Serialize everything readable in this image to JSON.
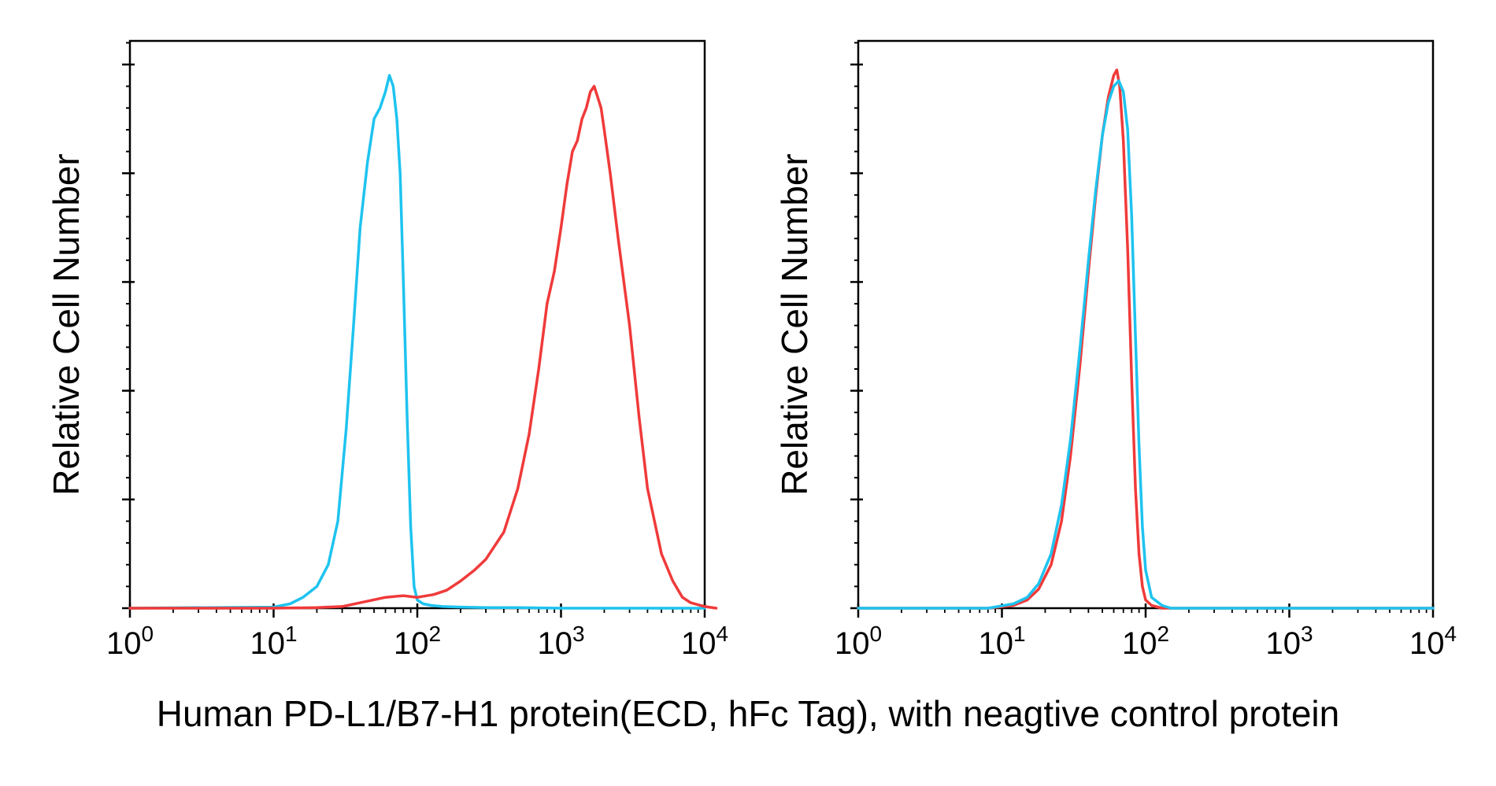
{
  "caption": "Human PD-L1/B7-H1 protein(ECD, hFc Tag), with neagtive control protein",
  "chart_data": [
    {
      "type": "line",
      "ylabel": "Relative Cell Number",
      "x_scale": "log",
      "xlim": [
        1,
        10000
      ],
      "ylim": [
        0,
        100
      ],
      "xticks": [
        {
          "value": 1,
          "base": "10",
          "exp": "0"
        },
        {
          "value": 10,
          "base": "10",
          "exp": "1"
        },
        {
          "value": 100,
          "base": "10",
          "exp": "2"
        },
        {
          "value": 1000,
          "base": "10",
          "exp": "3"
        },
        {
          "value": 10000,
          "base": "10",
          "exp": "4"
        }
      ],
      "grid": false,
      "series": [
        {
          "color": "#1ec3ef",
          "x": [
            1,
            10,
            13,
            16,
            20,
            24,
            28,
            32,
            36,
            40,
            45,
            50,
            55,
            60,
            64,
            68,
            72,
            76,
            80,
            85,
            90,
            95,
            100,
            110,
            125,
            150,
            200,
            300,
            500,
            1000,
            10000
          ],
          "y": [
            0,
            0.2,
            0.8,
            2,
            4,
            8,
            16,
            33,
            52,
            70,
            82,
            90,
            92,
            95,
            98,
            96,
            90,
            80,
            60,
            35,
            15,
            4,
            1.5,
            0.8,
            0.5,
            0.3,
            0.2,
            0.1,
            0.1,
            0,
            0
          ]
        },
        {
          "color": "#f03a3a",
          "x": [
            1,
            10,
            20,
            30,
            40,
            60,
            80,
            100,
            130,
            160,
            200,
            250,
            300,
            400,
            500,
            600,
            700,
            800,
            900,
            1000,
            1100,
            1200,
            1300,
            1400,
            1500,
            1600,
            1700,
            1800,
            1900,
            2000,
            2200,
            2500,
            3000,
            3500,
            4000,
            5000,
            6000,
            7000,
            8000,
            10000,
            12000
          ],
          "y": [
            0,
            0,
            0.1,
            0.3,
            1,
            2,
            2.3,
            2,
            2.5,
            3.3,
            5,
            7,
            9,
            14,
            22,
            32,
            44,
            56,
            62,
            70,
            78,
            84,
            86,
            90,
            92,
            95,
            96,
            94,
            92,
            88,
            80,
            68,
            52,
            35,
            22,
            10,
            5,
            2,
            1,
            0.3,
            0
          ]
        }
      ]
    },
    {
      "type": "line",
      "ylabel": "Relative Cell Number",
      "x_scale": "log",
      "xlim": [
        1,
        10000
      ],
      "ylim": [
        0,
        100
      ],
      "xticks": [
        {
          "value": 1,
          "base": "10",
          "exp": "0"
        },
        {
          "value": 10,
          "base": "10",
          "exp": "1"
        },
        {
          "value": 100,
          "base": "10",
          "exp": "2"
        },
        {
          "value": 1000,
          "base": "10",
          "exp": "3"
        },
        {
          "value": 10000,
          "base": "10",
          "exp": "4"
        }
      ],
      "grid": false,
      "series": [
        {
          "color": "#f03a3a",
          "x": [
            1,
            8,
            12,
            15,
            18,
            22,
            26,
            30,
            35,
            40,
            45,
            50,
            55,
            60,
            63,
            66,
            70,
            75,
            80,
            85,
            90,
            95,
            100,
            110,
            130,
            10000
          ],
          "y": [
            0,
            0,
            0.5,
            1.5,
            3.5,
            8,
            16,
            28,
            45,
            62,
            76,
            87,
            94,
            98,
            99,
            96,
            86,
            66,
            42,
            22,
            10,
            4,
            1.5,
            0.5,
            0,
            0
          ]
        },
        {
          "color": "#1ec3ef",
          "x": [
            1,
            8,
            12,
            15,
            18,
            22,
            26,
            30,
            35,
            40,
            45,
            50,
            55,
            60,
            65,
            70,
            75,
            80,
            85,
            90,
            95,
            100,
            110,
            130,
            150,
            10000
          ],
          "y": [
            0,
            0,
            0.8,
            2,
            4.5,
            10,
            19,
            31,
            48,
            64,
            77,
            87,
            93,
            96,
            97,
            95,
            88,
            72,
            50,
            30,
            15,
            7,
            2,
            0.5,
            0,
            0
          ]
        }
      ]
    }
  ]
}
